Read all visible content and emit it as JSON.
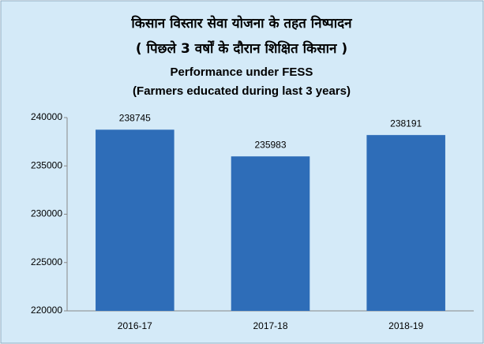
{
  "chart_data": {
    "type": "bar",
    "title_lines": [
      "किसान विस्तार सेवा योजना के तहत निष्पादन",
      "( पिछले 3 वर्षों के दौरान शिक्षित किसान )",
      "Performance under FESS",
      "(Farmers educated during last 3 years)"
    ],
    "categories": [
      "2016-17",
      "2017-18",
      "2018-19"
    ],
    "values": [
      238745,
      235983,
      238191
    ],
    "color": "#2e6db8",
    "ylim": [
      220000,
      240000
    ],
    "yticks": [
      220000,
      225000,
      230000,
      235000,
      240000
    ],
    "grid": false
  }
}
